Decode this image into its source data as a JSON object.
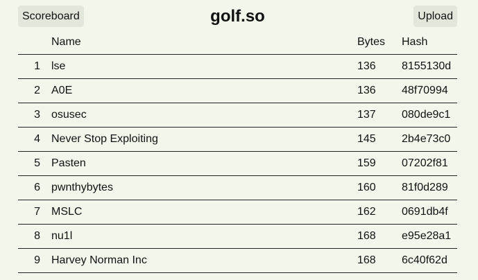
{
  "header": {
    "scoreboard_label": "Scoreboard",
    "title": "golf.so",
    "upload_label": "Upload"
  },
  "table": {
    "columns": [
      "",
      "Name",
      "Bytes",
      "Hash"
    ],
    "rows": [
      {
        "rank": "1",
        "name": "lse",
        "bytes": "136",
        "hash": "8155130d"
      },
      {
        "rank": "2",
        "name": "A0E",
        "bytes": "136",
        "hash": "48f70994"
      },
      {
        "rank": "3",
        "name": "osusec",
        "bytes": "137",
        "hash": "080de9c1"
      },
      {
        "rank": "4",
        "name": "Never Stop Exploiting",
        "bytes": "145",
        "hash": "2b4e73c0"
      },
      {
        "rank": "5",
        "name": "Pasten",
        "bytes": "159",
        "hash": "07202f81"
      },
      {
        "rank": "6",
        "name": "pwnthybytes",
        "bytes": "160",
        "hash": "81f0d289"
      },
      {
        "rank": "7",
        "name": "MSLC",
        "bytes": "162",
        "hash": "0691db4f"
      },
      {
        "rank": "8",
        "name": "nu1l",
        "bytes": "168",
        "hash": "e95e28a1"
      },
      {
        "rank": "9",
        "name": "Harvey Norman Inc",
        "bytes": "168",
        "hash": "6c40f62d"
      }
    ]
  },
  "colors": {
    "background": "#f2f7ec",
    "button_background": "#e2e7dc",
    "rule": "#222222"
  }
}
